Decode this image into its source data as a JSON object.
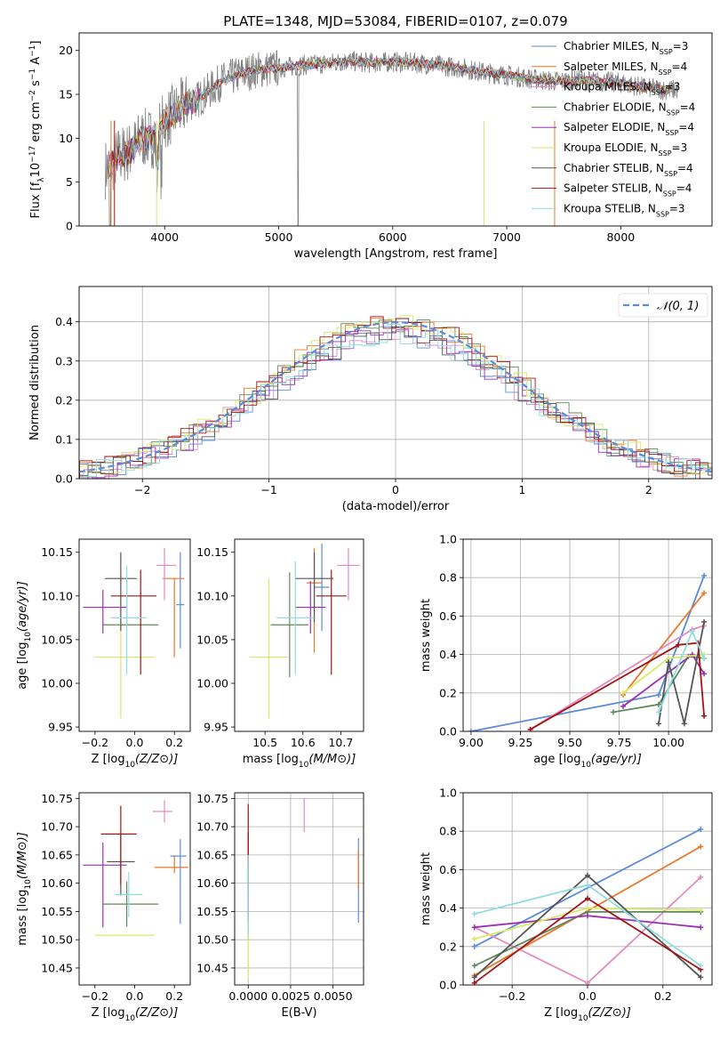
{
  "title": "PLATE=1348, MJD=53084, FIBERID=0107, z=0.079",
  "colors": {
    "Chabrier MILES": "#1f77b4",
    "Salpeter MILES": "#ff7f0e",
    "Kroupa MILES": "#e377c2",
    "Chabrier ELODIE": "#2ca02c",
    "Salpeter ELODIE": "#9467bd",
    "Kroupa ELODIE": "#dfe04a",
    "Chabrier STELIB": "#444444",
    "Salpeter STELIB": "#b2182b",
    "Kroupa STELIB": "#8dd9dc"
  },
  "models": [
    {
      "name": "Chabrier MILES",
      "nssp": "3",
      "color": "#5b8bd9"
    },
    {
      "name": "Salpeter MILES",
      "nssp": "4",
      "color": "#e8782a"
    },
    {
      "name": "Kroupa MILES",
      "nssp": "3",
      "color": "#e58ac0"
    },
    {
      "name": "Chabrier ELODIE",
      "nssp": "4",
      "color": "#5e8a5e"
    },
    {
      "name": "Salpeter ELODIE",
      "nssp": "4",
      "color": "#9b2fb3"
    },
    {
      "name": "Kroupa ELODIE",
      "nssp": "3",
      "color": "#d6ea6a"
    },
    {
      "name": "Chabrier STELIB",
      "nssp": "4",
      "color": "#555555"
    },
    {
      "name": "Salpeter STELIB",
      "nssp": "4",
      "color": "#a31515"
    },
    {
      "name": "Kroupa STELIB",
      "nssp": "3",
      "color": "#8fdde0"
    }
  ],
  "chart_data": [
    {
      "id": "spectrum",
      "type": "line",
      "title": "PLATE=1348, MJD=53084, FIBERID=0107, z=0.079",
      "xlabel": "wavelength [Angstrom, rest frame]",
      "ylabel": "Flux [f_λ 10^-17 erg cm^-2 s^-1 A^-1]",
      "xlim": [
        3250,
        8800
      ],
      "ylim": [
        0,
        22
      ],
      "xticks": [
        4000,
        5000,
        6000,
        7000,
        8000
      ],
      "yticks": [
        0,
        5,
        10,
        15,
        20
      ],
      "legend": "top-right",
      "continuum": {
        "x": [
          3500,
          3600,
          3700,
          3800,
          3900,
          4000,
          4100,
          4200,
          4300,
          4400,
          4500,
          4600,
          4800,
          5000,
          5200,
          5400,
          5600,
          5800,
          6000,
          6200,
          6400,
          6600,
          6800,
          7000,
          7200,
          7400,
          7600,
          7800,
          8000,
          8200,
          8400
        ],
        "y": [
          6.5,
          8.0,
          8.5,
          10.0,
          10.0,
          12.0,
          13.0,
          14.0,
          14.5,
          15.5,
          16.5,
          17.0,
          17.8,
          18.0,
          18.3,
          18.5,
          18.8,
          18.6,
          18.7,
          18.6,
          18.3,
          18.0,
          17.5,
          17.2,
          16.8,
          16.5,
          16.6,
          16.5,
          16.3,
          15.8,
          15.5
        ]
      }
    },
    {
      "id": "residuals",
      "type": "area",
      "xlabel": "(data-model)/error",
      "ylabel": "Normed distribution",
      "xlim": [
        -2.5,
        2.5
      ],
      "ylim": [
        0,
        0.49
      ],
      "xticks": [
        -2,
        -1,
        0,
        1,
        2
      ],
      "yticks": [
        0.0,
        0.1,
        0.2,
        0.3,
        0.4
      ],
      "legend_label": "𝒩(0, 1)",
      "legend": "top-right",
      "grid": true
    },
    {
      "id": "age-vs-Z",
      "type": "scatter",
      "xlabel": "Z [log10(Z/Z⊙)]",
      "ylabel": "age  [log10(age/yr)]",
      "xlim": [
        -0.28,
        0.28
      ],
      "ylim": [
        9.945,
        10.165
      ],
      "xticks": [
        -0.2,
        0.0,
        0.2
      ],
      "yticks": [
        9.95,
        10.0,
        10.05,
        10.1,
        10.15
      ],
      "points": [
        {
          "x": 0.23,
          "y": 10.09,
          "xerr": [
            0.02,
            0.02
          ],
          "yerr": [
            0.05,
            0.06
          ]
        },
        {
          "x": 0.2,
          "y": 10.12,
          "xerr": [
            0.06,
            0.05
          ],
          "yerr": [
            0.09,
            0.0
          ]
        },
        {
          "x": 0.15,
          "y": 10.135,
          "xerr": [
            0.04,
            0.06
          ],
          "yerr": [
            0.04,
            0.02
          ]
        },
        {
          "x": -0.04,
          "y": 10.067,
          "xerr": [
            0.12,
            0.16
          ],
          "yerr": [
            0.0,
            0.05
          ]
        },
        {
          "x": -0.16,
          "y": 10.087,
          "xerr": [
            0.1,
            0.12
          ],
          "yerr": [
            0.03,
            0.02
          ]
        },
        {
          "x": -0.07,
          "y": 10.03,
          "xerr": [
            0.13,
            0.17
          ],
          "yerr": [
            0.07,
            0.09
          ]
        },
        {
          "x": -0.07,
          "y": 10.12,
          "xerr": [
            0.08,
            0.08
          ],
          "yerr": [
            0.06,
            0.03
          ]
        },
        {
          "x": 0.03,
          "y": 10.1,
          "xerr": [
            0.15,
            0.08
          ],
          "yerr": [
            0.09,
            0.03
          ]
        },
        {
          "x": -0.04,
          "y": 10.075,
          "xerr": [
            0.08,
            0.1
          ],
          "yerr": [
            0.065,
            0.06
          ]
        }
      ]
    },
    {
      "id": "age-vs-mass",
      "type": "scatter",
      "xlabel": "mass [log10(M/M⊙)]",
      "ylabel": "",
      "xlim": [
        10.42,
        10.76
      ],
      "ylim": [
        9.945,
        10.165
      ],
      "xticks": [
        10.5,
        10.6,
        10.7
      ],
      "yticks": [
        9.95,
        10.0,
        10.05,
        10.1,
        10.15
      ],
      "points": [
        {
          "x": 10.65,
          "y": 10.11,
          "xerr": [
            0.02,
            0.02
          ],
          "yerr": [
            0.05,
            0.05
          ]
        },
        {
          "x": 10.63,
          "y": 10.115,
          "xerr": [
            0.02,
            0.02
          ],
          "yerr": [
            0.08,
            0.04
          ]
        },
        {
          "x": 10.72,
          "y": 10.135,
          "xerr": [
            0.03,
            0.03
          ],
          "yerr": [
            0.04,
            0.02
          ]
        },
        {
          "x": 10.565,
          "y": 10.067,
          "xerr": [
            0.05,
            0.05
          ],
          "yerr": [
            0.06,
            0.06
          ]
        },
        {
          "x": 10.62,
          "y": 10.087,
          "xerr": [
            0.04,
            0.04
          ],
          "yerr": [
            0.03,
            0.03
          ]
        },
        {
          "x": 10.51,
          "y": 10.03,
          "xerr": [
            0.05,
            0.05
          ],
          "yerr": [
            0.07,
            0.09
          ]
        },
        {
          "x": 10.63,
          "y": 10.12,
          "xerr": [
            0.05,
            0.05
          ],
          "yerr": [
            0.05,
            0.03
          ]
        },
        {
          "x": 10.675,
          "y": 10.1,
          "xerr": [
            0.04,
            0.04
          ],
          "yerr": [
            0.09,
            0.03
          ]
        },
        {
          "x": 10.58,
          "y": 10.075,
          "xerr": [
            0.05,
            0.05
          ],
          "yerr": [
            0.065,
            0.065
          ]
        }
      ]
    },
    {
      "id": "weight-vs-age",
      "type": "line",
      "xlabel": "age  [log10(age/yr)]",
      "ylabel": "mass weight",
      "xlim": [
        8.96,
        10.22
      ],
      "ylim": [
        0,
        1.0
      ],
      "xticks": [
        9.0,
        9.25,
        9.5,
        9.75,
        10.0
      ],
      "yticks": [
        0.0,
        0.2,
        0.4,
        0.6,
        0.8,
        1.0
      ],
      "grid": true,
      "series": [
        {
          "x": [
            9.0,
            9.95,
            10.18
          ],
          "y": [
            0.0,
            0.19,
            0.81
          ]
        },
        {
          "x": [
            9.77,
            10.18
          ],
          "y": [
            0.19,
            0.72
          ]
        },
        {
          "x": [
            9.3,
            10.12,
            10.18
          ],
          "y": [
            0.01,
            0.53,
            0.55
          ]
        },
        {
          "x": [
            9.72,
            9.95,
            10.1,
            10.18
          ],
          "y": [
            0.1,
            0.14,
            0.39,
            0.38
          ]
        },
        {
          "x": [
            9.77,
            10.12,
            10.18
          ],
          "y": [
            0.13,
            0.4,
            0.3
          ]
        },
        {
          "x": [
            9.77,
            10.0,
            10.18
          ],
          "y": [
            0.2,
            0.38,
            0.4
          ]
        },
        {
          "x": [
            9.95,
            10.0,
            10.08,
            10.18
          ],
          "y": [
            0.04,
            0.36,
            0.04,
            0.57
          ]
        },
        {
          "x": [
            9.3,
            10.05,
            10.15,
            10.18
          ],
          "y": [
            0.01,
            0.45,
            0.46,
            0.08
          ]
        },
        {
          "x": [
            9.95,
            10.12,
            10.18
          ],
          "y": [
            0.1,
            0.52,
            0.38
          ]
        }
      ]
    },
    {
      "id": "mass-vs-Z",
      "type": "scatter",
      "xlabel": "Z [log10(Z/Z⊙)]",
      "ylabel": "mass [log10(M/M⊙)]",
      "xlim": [
        -0.28,
        0.28
      ],
      "ylim": [
        10.42,
        10.76
      ],
      "xticks": [
        -0.2,
        0.0,
        0.2
      ],
      "yticks": [
        10.45,
        10.5,
        10.55,
        10.6,
        10.65,
        10.7,
        10.75
      ],
      "points": [
        {
          "x": 0.23,
          "y": 10.648,
          "xerr": [
            0.05,
            0.03
          ],
          "yerr": [
            0.12,
            0.03
          ]
        },
        {
          "x": 0.2,
          "y": 10.628,
          "xerr": [
            0.1,
            0.07
          ],
          "yerr": [
            0.01,
            0.02
          ]
        },
        {
          "x": 0.15,
          "y": 10.727,
          "xerr": [
            0.06,
            0.04
          ],
          "yerr": [
            0.02,
            0.02
          ]
        },
        {
          "x": -0.04,
          "y": 10.563,
          "xerr": [
            0.12,
            0.16
          ],
          "yerr": [
            0.04,
            0.04
          ]
        },
        {
          "x": -0.16,
          "y": 10.632,
          "xerr": [
            0.1,
            0.12
          ],
          "yerr": [
            0.11,
            0.04
          ]
        },
        {
          "x": -0.07,
          "y": 10.508,
          "xerr": [
            0.13,
            0.17
          ],
          "yerr": [
            0.0,
            0.0
          ]
        },
        {
          "x": -0.07,
          "y": 10.638,
          "xerr": [
            0.07,
            0.07
          ],
          "yerr": [
            0.06,
            0.05
          ]
        },
        {
          "x": -0.07,
          "y": 10.687,
          "xerr": [
            0.1,
            0.08
          ],
          "yerr": [
            0.09,
            0.05
          ]
        },
        {
          "x": -0.03,
          "y": 10.58,
          "xerr": [
            0.07,
            0.07
          ],
          "yerr": [
            0.04,
            0.04
          ]
        }
      ]
    },
    {
      "id": "mass-vs-EBV",
      "type": "scatter",
      "xlabel": "E(B-V)",
      "ylabel": "",
      "xlim": [
        -0.0008,
        0.0068
      ],
      "ylim": [
        10.42,
        10.76
      ],
      "xticks": [
        0.0,
        0.0025,
        0.005
      ],
      "xtick_labels": [
        "0.0000",
        "0.0025",
        "0.0050"
      ],
      "yticks": [
        10.45,
        10.5,
        10.55,
        10.6,
        10.65,
        10.7,
        10.75
      ],
      "grid": true,
      "points": [
        {
          "x": 0.0065,
          "y": 10.6,
          "yerr": [
            0.07,
            0.08
          ]
        },
        {
          "x": 0.0065,
          "y": 10.63,
          "yerr": [
            0.04,
            0.03
          ]
        },
        {
          "x": 0.0033,
          "y": 10.72,
          "yerr": [
            0.03,
            0.03
          ]
        },
        {
          "x": 0.0,
          "y": 10.57,
          "yerr": [
            0.07,
            0.07
          ]
        },
        {
          "x": 0.0,
          "y": 10.63,
          "yerr": [
            0.09,
            0.06
          ]
        },
        {
          "x": 0.0,
          "y": 10.48,
          "yerr": [
            0.05,
            0.05
          ]
        },
        {
          "x": 0.0,
          "y": 10.64,
          "yerr": [
            0.05,
            0.05
          ]
        },
        {
          "x": 0.0,
          "y": 10.69,
          "yerr": [
            0.06,
            0.05
          ]
        },
        {
          "x": 0.0,
          "y": 10.58,
          "yerr": [
            0.07,
            0.07
          ]
        }
      ]
    },
    {
      "id": "weight-vs-Z",
      "type": "line",
      "xlabel": "Z [log10(Z/Z⊙)]",
      "ylabel": "mass weight",
      "xlim": [
        -0.33,
        0.33
      ],
      "ylim": [
        0,
        1.0
      ],
      "xticks": [
        -0.2,
        0.0,
        0.2
      ],
      "yticks": [
        0.0,
        0.2,
        0.4,
        0.6,
        0.8,
        1.0
      ],
      "grid": true,
      "series": [
        {
          "x": [
            -0.3,
            0.3
          ],
          "y": [
            0.2,
            0.81
          ]
        },
        {
          "x": [
            -0.3,
            0.3
          ],
          "y": [
            0.05,
            0.72
          ]
        },
        {
          "x": [
            -0.3,
            0.0,
            0.3
          ],
          "y": [
            0.3,
            0.01,
            0.56
          ]
        },
        {
          "x": [
            -0.3,
            0.0,
            0.3
          ],
          "y": [
            0.1,
            0.38,
            0.38
          ]
        },
        {
          "x": [
            -0.3,
            0.0,
            0.3
          ],
          "y": [
            0.3,
            0.36,
            0.3
          ]
        },
        {
          "x": [
            -0.3,
            0.0,
            0.3
          ],
          "y": [
            0.24,
            0.4,
            0.39
          ]
        },
        {
          "x": [
            -0.3,
            0.0,
            0.3
          ],
          "y": [
            0.04,
            0.57,
            0.04
          ]
        },
        {
          "x": [
            -0.3,
            0.0,
            0.3
          ],
          "y": [
            0.01,
            0.45,
            0.08
          ]
        },
        {
          "x": [
            -0.3,
            0.0,
            0.3
          ],
          "y": [
            0.37,
            0.52,
            0.1
          ]
        }
      ]
    }
  ]
}
